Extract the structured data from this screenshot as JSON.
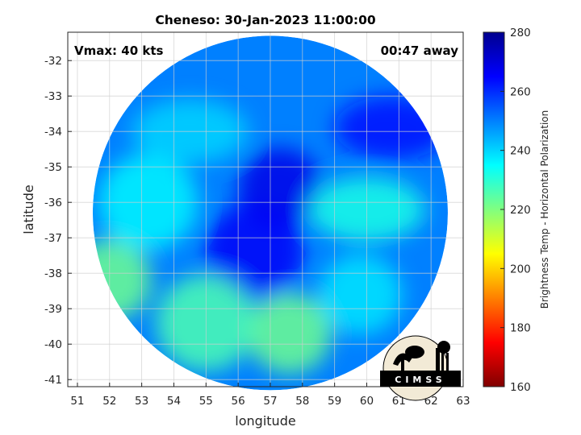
{
  "chart_data": {
    "type": "heatmap",
    "title": "Cheneso: 30-Jan-2023 11:00:00",
    "xlabel": "longitude",
    "ylabel": "latitude",
    "xlim": [
      50.7,
      63
    ],
    "ylim": [
      -41.2,
      -31.2
    ],
    "xticks": [
      "51",
      "52",
      "53",
      "54",
      "55",
      "56",
      "57",
      "58",
      "59",
      "60",
      "61",
      "62",
      "63"
    ],
    "yticks": [
      "-32",
      "-33",
      "-34",
      "-35",
      "-36",
      "-37",
      "-38",
      "-39",
      "-40",
      "-41"
    ],
    "grid": true,
    "annotations": {
      "top_left": "Vmax: 40 kts",
      "top_right": "00:47 away"
    },
    "colorbar": {
      "label": "Brightness Temp - Horizontal Polarization",
      "range": [
        160,
        280
      ],
      "ticks": [
        "280",
        "260",
        "240",
        "220",
        "200",
        "180",
        "160"
      ],
      "colormap": [
        "#800000",
        "#ff0000",
        "#ff8000",
        "#ffff00",
        "#80ff80",
        "#00ffff",
        "#0080ff",
        "#0000ff",
        "#00008f"
      ]
    },
    "swath": {
      "center": [
        57,
        -36.3
      ],
      "features": [
        {
          "region": "swath background",
          "lon": 57.0,
          "lat": -36.3,
          "value": 250
        },
        {
          "region": "cold core",
          "lon": 57.3,
          "lat": -35.6,
          "value": 268
        },
        {
          "region": "central dark area",
          "lon": 56.5,
          "lat": -37.4,
          "value": 266
        },
        {
          "region": "east dark area",
          "lon": 60.8,
          "lat": -33.9,
          "value": 264
        },
        {
          "region": "west warm band",
          "lon": 52.0,
          "lat": -38.2,
          "value": 222
        },
        {
          "region": "west light band",
          "lon": 53.2,
          "lat": -36.0,
          "value": 236
        },
        {
          "region": "northwest band",
          "lon": 54.5,
          "lat": -34.0,
          "value": 240
        },
        {
          "region": "south warm area",
          "lon": 57.6,
          "lat": -39.7,
          "value": 222
        },
        {
          "region": "south-west warm area",
          "lon": 55.0,
          "lat": -39.4,
          "value": 226
        },
        {
          "region": "east cyan band",
          "lon": 60.0,
          "lat": -36.2,
          "value": 232
        },
        {
          "region": "southeast light area",
          "lon": 59.8,
          "lat": -38.6,
          "value": 238
        }
      ]
    }
  },
  "logo": {
    "text": "CIMSS"
  }
}
